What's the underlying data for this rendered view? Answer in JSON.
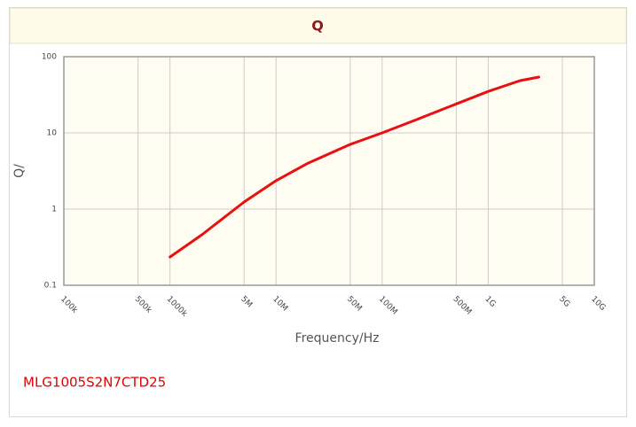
{
  "chart_data": {
    "type": "line",
    "title": "Q",
    "x_label": "Frequency/Hz",
    "y_label": "Q/",
    "xlog": true,
    "ylog": true,
    "grid": true,
    "xlim": [
      100000,
      10000000000
    ],
    "ylim": [
      0.1,
      100
    ],
    "xticks": [
      {
        "value": 100000,
        "label": "100k"
      },
      {
        "value": 500000,
        "label": "500k"
      },
      {
        "value": 1000000,
        "label": "1000k"
      },
      {
        "value": 5000000,
        "label": "5M"
      },
      {
        "value": 10000000,
        "label": "10M"
      },
      {
        "value": 50000000,
        "label": "50M"
      },
      {
        "value": 100000000,
        "label": "100M"
      },
      {
        "value": 500000000,
        "label": "500M"
      },
      {
        "value": 1000000000,
        "label": "1G"
      },
      {
        "value": 5000000000,
        "label": "5G"
      },
      {
        "value": 10000000000,
        "label": "10G"
      }
    ],
    "yticks": [
      0.1,
      1,
      10,
      100
    ],
    "series": [
      {
        "color": "#e81010",
        "x": [
          1000000,
          2000000,
          5000000,
          10000000,
          20000000,
          50000000,
          100000000,
          200000000,
          500000000,
          1000000000,
          2000000000,
          3000000000
        ],
        "values": [
          0.235,
          0.46,
          1.24,
          2.36,
          4.0,
          7.06,
          10,
          14.5,
          24,
          35,
          48.5,
          54
        ]
      }
    ],
    "annotation": "MLG1005S2N7CTD25"
  }
}
